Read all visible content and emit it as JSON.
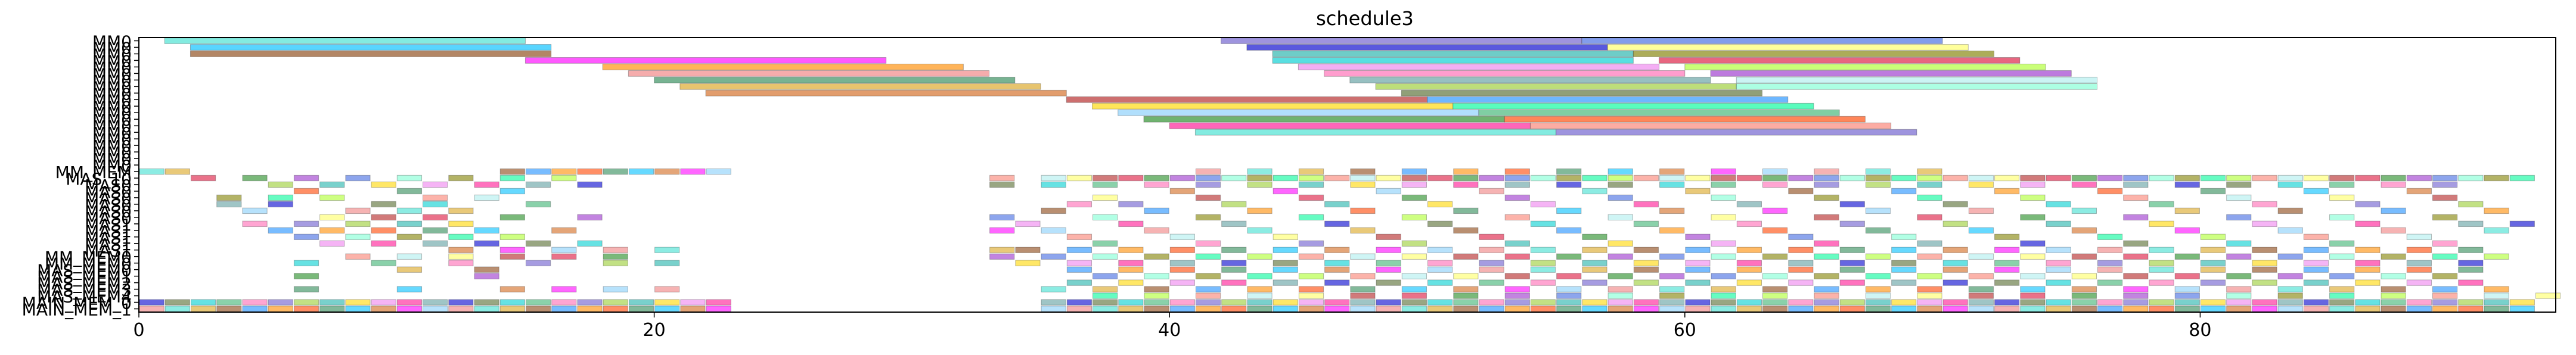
{
  "chart_data": {
    "type": "gantt",
    "title": "schedule3",
    "xlim": [
      0,
      93.8
    ],
    "x_ticks": [
      0,
      20,
      40,
      60,
      80
    ],
    "y_labels": [
      "MM0",
      "MM0",
      "MM0",
      "MM0",
      "MM0",
      "MM0",
      "MM0",
      "MM0",
      "MM0",
      "MM0",
      "MM0",
      "MM0",
      "MM0",
      "MM0",
      "MM0",
      "MM0",
      "MM0",
      "MM0",
      "MM0",
      "MM0",
      "MM_MEM",
      "MAS_10",
      "MAS0",
      "MAS0",
      "MAS0",
      "MAS0",
      "MAS0",
      "MAS0",
      "MAS1",
      "MAS1",
      "MAS1",
      "MAS1",
      "MAS1",
      "MM_MEM0",
      "MM_MEM0",
      "MAS_MEM0",
      "MAS_MEM1",
      "MAS_MEM2",
      "MAS_MEM3",
      "MAS_MEM4",
      "MAIN_MEM_0",
      "MAIN_MEM_1"
    ],
    "row_count": 42,
    "palette": [
      "#40e0d0",
      "#3cb371",
      "#b22222",
      "#daa520",
      "#ff69b4",
      "#dc143c",
      "#8b4513",
      "#6a5acd",
      "#228b22",
      "#1e90ff",
      "#9acd32",
      "#9932cc",
      "#ff8c00",
      "#20b2aa",
      "#4169e1",
      "#ff4500",
      "#ffd700",
      "#7fffd4",
      "#2e8b57",
      "#ee82ee",
      "#808000",
      "#00bfff",
      "#ff1493",
      "#00fa9a",
      "#d2691e",
      "#5f9ea0",
      "#adff2f",
      "#ff00ff",
      "#0000cd",
      "#fa8072",
      "#87cefa",
      "#556b2f",
      "#afeeee",
      "#f08080",
      "#00ced1",
      "#ffff66"
    ],
    "bars": [
      {
        "row": 0,
        "start": 1.0,
        "end": 15.0
      },
      {
        "row": 0,
        "start": 42.0,
        "end": 56.0
      },
      {
        "row": 0,
        "start": 56.0,
        "end": 70.0
      },
      {
        "row": 1,
        "start": 2.0,
        "end": 16.0
      },
      {
        "row": 1,
        "start": 43.0,
        "end": 57.0
      },
      {
        "row": 1,
        "start": 57.0,
        "end": 71.0
      },
      {
        "row": 2,
        "start": 2.0,
        "end": 16.0
      },
      {
        "row": 2,
        "start": 44.0,
        "end": 58.0
      },
      {
        "row": 2,
        "start": 58.0,
        "end": 72.0
      },
      {
        "row": 3,
        "start": 15.0,
        "end": 29.0
      },
      {
        "row": 3,
        "start": 44.0,
        "end": 58.0
      },
      {
        "row": 3,
        "start": 59.0,
        "end": 73.0
      },
      {
        "row": 4,
        "start": 18.0,
        "end": 32.0
      },
      {
        "row": 4,
        "start": 45.0,
        "end": 59.0
      },
      {
        "row": 4,
        "start": 60.0,
        "end": 74.0
      },
      {
        "row": 5,
        "start": 19.0,
        "end": 33.0
      },
      {
        "row": 5,
        "start": 46.0,
        "end": 60.0
      },
      {
        "row": 5,
        "start": 61.0,
        "end": 75.0
      },
      {
        "row": 6,
        "start": 20.0,
        "end": 34.0
      },
      {
        "row": 6,
        "start": 47.0,
        "end": 61.0
      },
      {
        "row": 6,
        "start": 62.0,
        "end": 76.0
      },
      {
        "row": 7,
        "start": 21.0,
        "end": 35.0
      },
      {
        "row": 7,
        "start": 48.0,
        "end": 62.0
      },
      {
        "row": 7,
        "start": 62.0,
        "end": 76.0
      },
      {
        "row": 8,
        "start": 22.0,
        "end": 36.0
      },
      {
        "row": 8,
        "start": 49.0,
        "end": 63.0
      },
      {
        "row": 9,
        "start": 36.0,
        "end": 50.0
      },
      {
        "row": 9,
        "start": 50.0,
        "end": 64.0
      },
      {
        "row": 10,
        "start": 37.0,
        "end": 51.0
      },
      {
        "row": 10,
        "start": 51.0,
        "end": 65.0
      },
      {
        "row": 11,
        "start": 38.0,
        "end": 52.0
      },
      {
        "row": 11,
        "start": 52.0,
        "end": 66.0
      },
      {
        "row": 12,
        "start": 39.0,
        "end": 53.0
      },
      {
        "row": 12,
        "start": 53.0,
        "end": 67.0
      },
      {
        "row": 13,
        "start": 40.0,
        "end": 54.0
      },
      {
        "row": 13,
        "start": 54.0,
        "end": 68.0
      },
      {
        "row": 14,
        "start": 41.0,
        "end": 55.0
      },
      {
        "row": 14,
        "start": 55.0,
        "end": 69.0
      }
    ],
    "blocks": [
      {
        "row": 20,
        "cells": [
          0,
          1,
          14,
          15,
          16,
          17,
          18,
          19,
          20,
          21,
          22,
          41,
          43,
          45,
          47,
          49,
          51,
          53,
          55,
          57,
          59,
          61,
          63,
          65,
          67,
          69
        ]
      },
      {
        "row": 21,
        "cells": [
          2,
          4,
          6,
          8,
          10,
          12,
          14,
          16,
          33,
          35,
          36,
          37,
          38,
          39,
          40,
          41,
          42,
          43,
          44,
          45,
          46,
          47,
          48,
          49,
          50,
          51,
          52,
          53,
          54,
          55,
          56,
          57,
          58,
          59,
          60,
          61,
          62,
          63,
          64,
          65,
          66,
          67,
          68,
          69,
          70,
          71,
          72,
          73,
          74,
          75,
          76,
          77,
          78,
          79,
          80,
          81,
          82,
          83,
          84,
          85,
          86,
          87,
          88,
          89,
          90,
          91,
          92
        ]
      },
      {
        "row": 22,
        "cells": [
          5,
          7,
          9,
          11,
          13,
          15,
          17,
          33,
          35,
          37,
          39,
          41,
          43,
          45,
          47,
          49,
          51,
          53,
          55,
          57,
          59,
          61,
          63,
          65,
          67,
          69,
          71,
          73,
          75,
          77,
          79,
          81,
          83,
          85,
          87,
          89
        ]
      },
      {
        "row": 23,
        "cells": [
          6,
          10,
          14,
          40,
          44,
          48,
          52,
          56,
          60,
          64,
          68,
          72,
          76,
          80,
          84,
          88
        ]
      },
      {
        "row": 24,
        "cells": [
          3,
          5,
          7,
          11,
          13,
          37,
          41,
          45,
          49,
          53,
          57,
          61,
          65,
          69,
          73,
          77,
          81,
          85,
          89
        ]
      },
      {
        "row": 25,
        "cells": [
          3,
          5,
          9,
          11,
          15,
          36,
          38,
          42,
          46,
          50,
          54,
          58,
          62,
          66,
          70,
          74,
          78,
          82,
          86,
          90
        ]
      },
      {
        "row": 26,
        "cells": [
          4,
          8,
          10,
          12,
          35,
          39,
          43,
          47,
          51,
          55,
          59,
          63,
          67,
          71,
          75,
          79,
          83,
          87,
          91
        ]
      },
      {
        "row": 27,
        "cells": [
          7,
          9,
          11,
          14,
          17,
          33,
          37,
          41,
          45,
          49,
          53,
          57,
          61,
          65,
          69,
          73,
          77,
          81,
          85,
          89
        ]
      },
      {
        "row": 28,
        "cells": [
          4,
          6,
          8,
          10,
          12,
          34,
          38,
          42,
          46,
          50,
          54,
          58,
          62,
          66,
          70,
          74,
          78,
          82,
          86,
          90,
          92
        ]
      },
      {
        "row": 29,
        "cells": [
          5,
          7,
          9,
          11,
          13,
          16,
          33,
          35,
          39,
          43,
          47,
          51,
          55,
          59,
          63,
          67,
          71,
          75,
          79,
          83,
          87,
          91
        ]
      },
      {
        "row": 30,
        "cells": [
          6,
          8,
          10,
          12,
          14,
          36,
          40,
          44,
          48,
          52,
          56,
          60,
          64,
          68,
          72,
          76,
          80,
          84,
          88
        ]
      },
      {
        "row": 31,
        "cells": [
          7,
          9,
          11,
          13,
          15,
          17,
          37,
          41,
          45,
          49,
          53,
          57,
          61,
          65,
          69,
          73,
          77,
          81,
          85,
          89
        ]
      },
      {
        "row": 32,
        "cells": [
          12,
          14,
          16,
          18,
          20,
          33,
          34,
          36,
          38,
          40,
          42,
          44,
          46,
          48,
          50,
          52,
          54,
          56,
          58,
          60,
          62,
          64,
          66,
          68,
          70,
          72,
          74,
          76,
          78,
          80,
          82,
          84,
          86,
          88,
          90
        ]
      },
      {
        "row": 33,
        "cells": [
          8,
          10,
          12,
          14,
          16,
          18,
          33,
          35,
          37,
          39,
          41,
          43,
          45,
          47,
          49,
          51,
          53,
          55,
          57,
          59,
          61,
          63,
          65,
          67,
          69,
          71,
          73,
          75,
          77,
          79,
          81,
          83,
          85,
          87,
          89,
          91
        ]
      },
      {
        "row": 34,
        "cells": [
          6,
          9,
          12,
          15,
          18,
          20,
          34,
          36,
          38,
          40,
          42,
          44,
          46,
          48,
          50,
          52,
          54,
          56,
          58,
          60,
          62,
          64,
          66,
          68,
          70,
          72,
          74,
          76,
          78,
          80,
          82,
          84,
          86,
          88,
          90
        ]
      },
      {
        "row": 35,
        "cells": [
          10,
          13,
          36,
          38,
          40,
          42,
          44,
          46,
          48,
          50,
          52,
          54,
          56,
          58,
          60,
          62,
          64,
          66,
          68,
          70,
          72,
          74,
          76,
          78,
          80,
          82,
          84,
          86,
          88,
          90
        ]
      },
      {
        "row": 36,
        "cells": [
          6,
          13,
          37,
          39,
          41,
          43,
          45,
          47,
          49,
          51,
          53,
          55,
          57,
          59,
          61,
          63,
          65,
          67,
          69,
          71,
          73,
          75,
          77,
          79,
          81,
          83,
          85,
          87,
          89
        ]
      },
      {
        "row": 37,
        "cells": [
          36,
          38,
          40,
          42,
          44,
          46,
          48,
          50,
          52,
          54,
          56,
          58,
          60,
          62,
          64,
          66,
          68,
          70,
          72,
          74,
          76,
          78,
          80,
          82,
          84,
          86,
          88,
          90
        ]
      },
      {
        "row": 38,
        "cells": [
          6,
          10,
          14,
          16,
          18,
          20,
          35,
          37,
          39,
          41,
          43,
          45,
          47,
          49,
          51,
          53,
          55,
          57,
          59,
          61,
          63,
          65,
          67,
          69,
          71,
          73,
          75,
          77,
          79,
          81,
          83,
          85,
          87,
          89,
          91
        ]
      },
      {
        "row": 39,
        "cells": [
          37,
          39,
          41,
          43,
          45,
          47,
          49,
          51,
          53,
          55,
          57,
          59,
          61,
          63,
          65,
          67,
          69,
          71,
          73,
          75,
          77,
          79,
          81,
          83,
          85,
          87,
          89,
          91,
          93
        ]
      },
      {
        "row": 40,
        "cells": [
          0,
          1,
          2,
          3,
          4,
          5,
          6,
          7,
          8,
          9,
          10,
          11,
          12,
          13,
          14,
          15,
          16,
          17,
          18,
          19,
          20,
          21,
          22,
          35,
          36,
          37,
          38,
          39,
          40,
          41,
          42,
          43,
          44,
          45,
          46,
          47,
          48,
          49,
          50,
          51,
          52,
          53,
          54,
          55,
          56,
          57,
          58,
          59,
          60,
          61,
          62,
          63,
          64,
          65,
          66,
          67,
          68,
          69,
          70,
          71,
          72,
          73,
          74,
          75,
          76,
          77,
          78,
          79,
          80,
          81,
          82,
          83,
          84,
          85,
          86,
          87,
          88,
          89,
          90,
          91,
          92
        ]
      },
      {
        "row": 41,
        "cells": [
          0,
          1,
          2,
          3,
          4,
          5,
          6,
          7,
          8,
          9,
          10,
          11,
          12,
          13,
          14,
          15,
          16,
          17,
          18,
          19,
          20,
          21,
          22,
          35,
          36,
          37,
          38,
          39,
          40,
          41,
          42,
          43,
          44,
          45,
          46,
          47,
          48,
          49,
          50,
          51,
          52,
          53,
          54,
          55,
          56,
          57,
          58,
          59,
          60,
          61,
          62,
          63,
          64,
          65,
          66,
          67,
          68,
          69,
          70,
          71,
          72,
          73,
          74,
          75,
          76,
          77,
          78,
          79,
          80,
          81,
          82,
          83,
          84,
          85,
          86,
          87,
          88,
          89,
          90,
          91,
          92
        ]
      }
    ]
  }
}
